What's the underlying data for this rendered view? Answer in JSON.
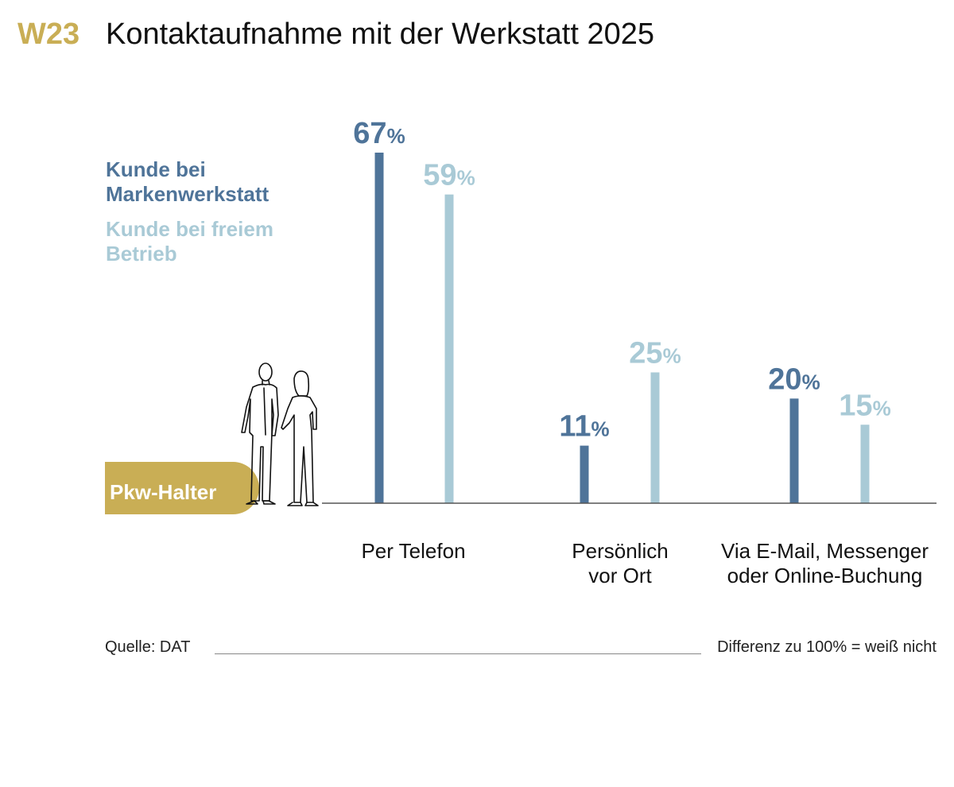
{
  "header": {
    "code": "W23",
    "title": "Kontaktaufnahme mit der Werkstatt 2025"
  },
  "legend": {
    "series1": "Kunde bei Markenwerkstatt",
    "series2": "Kunde bei freiem Betrieb"
  },
  "badge": "Pkw-Halter",
  "footer": {
    "source": "Quelle: DAT",
    "note": "Differenz zu 100% = weiß nicht"
  },
  "colors": {
    "series1": "#4f7499",
    "series2": "#a9cad6",
    "accent": "#c9ae55",
    "axis": "#555555"
  },
  "chart_data": {
    "type": "bar",
    "title": "Kontaktaufnahme mit der Werkstatt 2025",
    "categories": [
      "Per Telefon",
      "Persönlich vor Ort",
      "Via E-Mail, Messenger oder Online-Buchung"
    ],
    "series": [
      {
        "name": "Kunde bei Markenwerkstatt",
        "values": [
          67,
          11,
          20
        ]
      },
      {
        "name": "Kunde bei freiem Betrieb",
        "values": [
          59,
          25,
          15
        ]
      }
    ],
    "unit": "%",
    "ylim": [
      0,
      67
    ],
    "grid": false,
    "legend_position": "left"
  }
}
